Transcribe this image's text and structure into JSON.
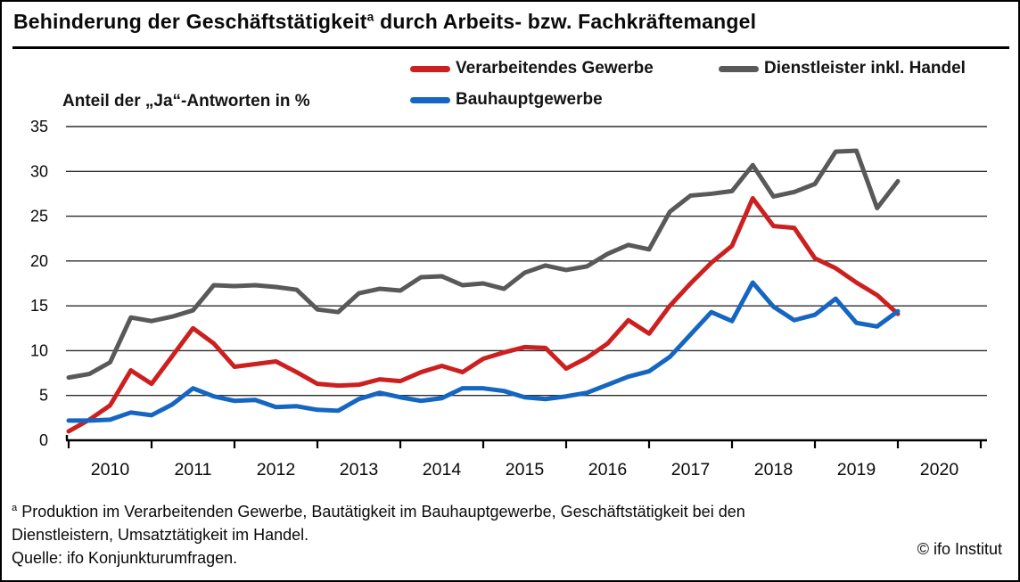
{
  "title": {
    "main": "Behinderung der Geschäftstätigkeit",
    "sup": "a",
    "rest": " durch Arbeits- bzw. Fachkräftemangel"
  },
  "subtitle": "Anteil der „Ja“-Antworten in %",
  "legend": [
    {
      "label": "Verarbeitendes Gewerbe"
    },
    {
      "label": "Dienstleister inkl. Handel"
    },
    {
      "label": "Bauhauptgewerbe"
    }
  ],
  "footnote": {
    "sup": "a",
    "line1": "Produktion im Verarbeitenden Gewerbe, Bautätigkeit im Bauhauptgewerbe, Geschäftstätigkeit bei den",
    "line2": "Dienstleistern, Umsatztätigkeit im Handel.",
    "source": "Quelle: ifo Konjunkturumfragen."
  },
  "copyright": "© ifo Institut",
  "colors": {
    "manufacturing_red": "#cc2020",
    "services_gray": "#595959",
    "construction_blue": "#1566c1",
    "grid": "#2e2e2e",
    "axis": "#000000"
  },
  "chart_data": {
    "type": "line",
    "title": "Behinderung der Geschäftstätigkeit durch Arbeits- bzw. Fachkräftemangel",
    "ylabel": "Anteil der „Ja“-Antworten in %",
    "xlabel": "",
    "grid": "horizontal",
    "legend_position": "top",
    "ylim": [
      0,
      35
    ],
    "yticks": [
      0,
      5,
      10,
      15,
      20,
      25,
      30,
      35
    ],
    "x_axis": {
      "year_start": 2010,
      "year_end": 2021,
      "points_per_year": 4
    },
    "xtick_labels": [
      "2010",
      "2011",
      "2012",
      "2013",
      "2014",
      "2015",
      "2016",
      "2017",
      "2018",
      "2019",
      "2020"
    ],
    "x": [
      "2010-Q1",
      "2010-Q2",
      "2010-Q3",
      "2010-Q4",
      "2011-Q1",
      "2011-Q2",
      "2011-Q3",
      "2011-Q4",
      "2012-Q1",
      "2012-Q2",
      "2012-Q3",
      "2012-Q4",
      "2013-Q1",
      "2013-Q2",
      "2013-Q3",
      "2013-Q4",
      "2014-Q1",
      "2014-Q2",
      "2014-Q3",
      "2014-Q4",
      "2015-Q1",
      "2015-Q2",
      "2015-Q3",
      "2015-Q4",
      "2016-Q1",
      "2016-Q2",
      "2016-Q3",
      "2016-Q4",
      "2017-Q1",
      "2017-Q2",
      "2017-Q3",
      "2017-Q4",
      "2018-Q1",
      "2018-Q2",
      "2018-Q3",
      "2018-Q4",
      "2019-Q1",
      "2019-Q2",
      "2019-Q3",
      "2019-Q4",
      "2020-Q1"
    ],
    "series": [
      {
        "name": "Verarbeitendes Gewerbe",
        "color": "#cc2020",
        "values": [
          1.0,
          2.3,
          3.9,
          7.8,
          6.3,
          9.4,
          12.5,
          10.8,
          8.2,
          8.5,
          8.8,
          7.6,
          6.3,
          6.1,
          6.2,
          6.8,
          6.6,
          7.6,
          8.3,
          7.6,
          9.1,
          9.8,
          10.4,
          10.3,
          8.0,
          9.2,
          10.8,
          13.4,
          11.9,
          15.0,
          17.5,
          19.8,
          21.7,
          27.0,
          23.9,
          23.7,
          20.3,
          19.2,
          17.6,
          16.2,
          14.1
        ]
      },
      {
        "name": "Dienstleister inkl. Handel",
        "color": "#595959",
        "values": [
          7.0,
          7.4,
          8.7,
          13.7,
          13.3,
          13.8,
          14.5,
          17.3,
          17.2,
          17.3,
          17.1,
          16.8,
          14.6,
          14.3,
          16.4,
          16.9,
          16.7,
          18.2,
          18.3,
          17.3,
          17.5,
          16.9,
          18.7,
          19.5,
          19.0,
          19.4,
          20.8,
          21.8,
          21.3,
          25.5,
          27.3,
          27.5,
          27.8,
          30.7,
          27.2,
          27.7,
          28.6,
          32.2,
          32.3,
          25.9,
          28.9
        ]
      },
      {
        "name": "Bauhauptgewerbe",
        "color": "#1566c1",
        "values": [
          2.2,
          2.2,
          2.3,
          3.1,
          2.8,
          4.0,
          5.8,
          4.9,
          4.4,
          4.5,
          3.7,
          3.8,
          3.4,
          3.3,
          4.6,
          5.3,
          4.8,
          4.4,
          4.7,
          5.8,
          5.8,
          5.5,
          4.8,
          4.6,
          4.9,
          5.3,
          6.2,
          7.1,
          7.7,
          9.3,
          11.8,
          14.3,
          13.3,
          17.6,
          14.9,
          13.4,
          14.0,
          15.8,
          13.1,
          12.7,
          14.4
        ]
      }
    ]
  }
}
